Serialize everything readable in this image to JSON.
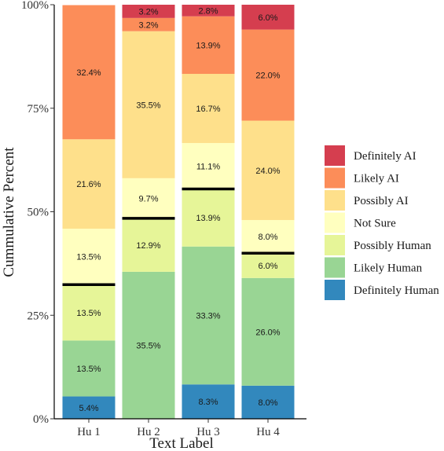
{
  "chart_data": {
    "type": "bar",
    "stacked": true,
    "categories": [
      "Hu 1",
      "Hu 2",
      "Hu 3",
      "Hu 4"
    ],
    "xlabel": "Text Label",
    "ylabel": "Cummulative Percent",
    "ylim": [
      0,
      100
    ],
    "yticks": [
      0,
      25,
      50,
      75,
      100
    ],
    "ytick_labels": [
      "0%",
      "25%",
      "50%",
      "75%",
      "100%"
    ],
    "legend_position": "right",
    "series": [
      {
        "name": "Definitely Human",
        "color": "#3288bd",
        "values": [
          5.4,
          0,
          8.3,
          8.0
        ],
        "labels": [
          "5.4%",
          "",
          "8.3%",
          "8.0%"
        ]
      },
      {
        "name": "Likely Human",
        "color": "#99d594",
        "values": [
          13.5,
          35.5,
          33.3,
          26.0
        ],
        "labels": [
          "13.5%",
          "35.5%",
          "33.3%",
          "26.0%"
        ]
      },
      {
        "name": "Possibly Human",
        "color": "#e6f598",
        "values": [
          13.5,
          12.9,
          13.9,
          6.0
        ],
        "labels": [
          "13.5%",
          "12.9%",
          "13.9%",
          "6.0%"
        ]
      },
      {
        "name": "Not Sure",
        "color": "#ffffbf",
        "values": [
          13.5,
          9.7,
          11.1,
          8.0
        ],
        "labels": [
          "13.5%",
          "9.7%",
          "11.1%",
          "8.0%"
        ]
      },
      {
        "name": "Possibly AI",
        "color": "#fee08b",
        "values": [
          21.6,
          35.5,
          16.7,
          24.0
        ],
        "labels": [
          "21.6%",
          "35.5%",
          "16.7%",
          "24.0%"
        ]
      },
      {
        "name": "Likely AI",
        "color": "#fc8d59",
        "values": [
          32.4,
          3.2,
          13.9,
          22.0
        ],
        "labels": [
          "32.4%",
          "3.2%",
          "13.9%",
          "22.0%"
        ]
      },
      {
        "name": "Definitely AI",
        "color": "#d53e4f",
        "values": [
          0,
          3.2,
          2.8,
          6.0
        ],
        "labels": [
          "",
          "3.2%",
          "2.8%",
          "6.0%"
        ]
      }
    ],
    "marker_lines": [
      32.4,
      48.4,
      55.5,
      40.0
    ]
  }
}
